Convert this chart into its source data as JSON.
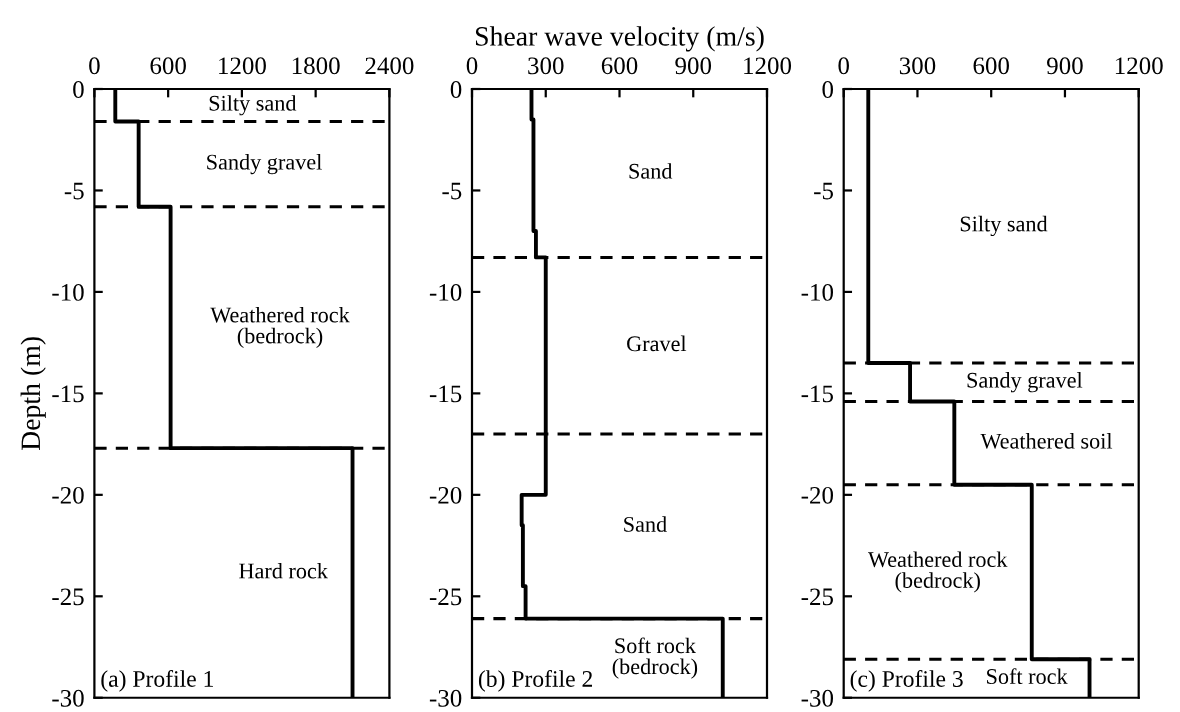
{
  "chart_data": [
    {
      "type": "line",
      "ylabel": "Depth (m)",
      "xlim": [
        0,
        2400
      ],
      "xticks": [
        0,
        600,
        1200,
        1800,
        2400
      ],
      "ylim": [
        -30,
        0
      ],
      "yticks": [
        0,
        -5,
        -10,
        -15,
        -20,
        -25,
        -30
      ],
      "grid": false,
      "series": [
        {
          "color": "#000000",
          "x": [
            170,
            170,
            360,
            360,
            620,
            620,
            2100,
            2100
          ],
          "values": [
            0,
            -1.6,
            -1.6,
            -5.8,
            -5.8,
            -17.7,
            -17.7,
            -30
          ]
        }
      ],
      "ref_lines": [
        {
          "axis": "y",
          "value": -1.6,
          "line_style": "dashed"
        },
        {
          "axis": "y",
          "value": -5.8,
          "line_style": "dashed"
        },
        {
          "axis": "y",
          "value": -17.7,
          "line_style": "dashed"
        }
      ],
      "annotations": [
        "Silty sand",
        "Sandy gravel",
        "Weathered rock\n(bedrock)",
        "Hard rock",
        "(a) Profile 1"
      ]
    },
    {
      "type": "line",
      "xlabel": "Shear wave velocity (m/s)",
      "xlim": [
        0,
        1200
      ],
      "xticks": [
        0,
        300,
        600,
        900,
        1200
      ],
      "ylim": [
        -30,
        0
      ],
      "yticks": [
        0,
        -5,
        -10,
        -15,
        -20,
        -25,
        -30
      ],
      "grid": false,
      "series": [
        {
          "color": "#000000",
          "x": [
            242,
            242,
            250,
            250,
            260,
            260,
            300,
            300,
            202,
            202,
            207,
            207,
            218,
            218,
            1020,
            1020
          ],
          "values": [
            0,
            -1.5,
            -1.5,
            -7,
            -7,
            -8.3,
            -8.3,
            -20,
            -20,
            -21.5,
            -21.5,
            -24.5,
            -24.5,
            -26.1,
            -26.1,
            -30
          ]
        }
      ],
      "ref_lines": [
        {
          "axis": "y",
          "value": -8.3,
          "line_style": "dashed"
        },
        {
          "axis": "y",
          "value": -17,
          "line_style": "dashed"
        },
        {
          "axis": "y",
          "value": -26.1,
          "line_style": "dashed"
        }
      ],
      "annotations": [
        "Sand",
        "Gravel",
        "Sand",
        "Soft rock\n(bedrock)",
        "(b) Profile 2"
      ]
    },
    {
      "type": "line",
      "xlim": [
        0,
        1200
      ],
      "xticks": [
        0,
        300,
        600,
        900,
        1200
      ],
      "ylim": [
        -30,
        0
      ],
      "yticks": [
        0,
        -5,
        -10,
        -15,
        -20,
        -25,
        -30
      ],
      "grid": false,
      "series": [
        {
          "color": "#000000",
          "x": [
            100,
            100,
            270,
            270,
            450,
            450,
            765,
            765,
            1000,
            1000
          ],
          "values": [
            0,
            -13.5,
            -13.5,
            -15.4,
            -15.4,
            -19.5,
            -19.5,
            -28.1,
            -28.1,
            -30
          ]
        }
      ],
      "ref_lines": [
        {
          "axis": "y",
          "value": -13.5,
          "line_style": "dashed"
        },
        {
          "axis": "y",
          "value": -15.4,
          "line_style": "dashed"
        },
        {
          "axis": "y",
          "value": -19.5,
          "line_style": "dashed"
        },
        {
          "axis": "y",
          "value": -28.1,
          "line_style": "dashed"
        }
      ],
      "annotations": [
        "Silty sand",
        "Sandy gravel",
        "Weathered soil",
        "Weathered rock\n(bedrock)",
        "Soft rock",
        "(c) Profile 3"
      ]
    }
  ]
}
